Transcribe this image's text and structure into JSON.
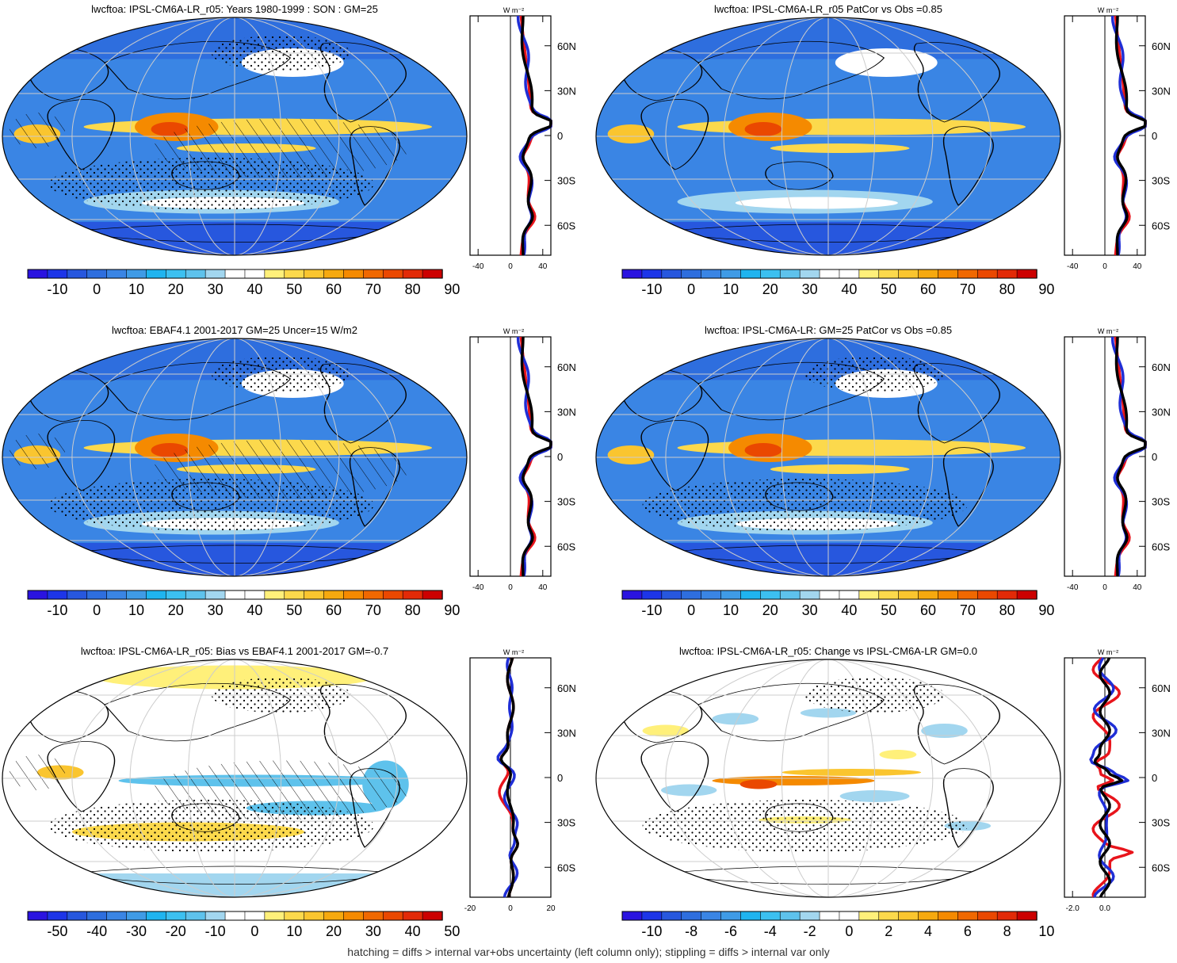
{
  "panels": [
    {
      "title": "lwcftoa: IPSL-CM6A-LR_r05: Years 1980-1999 : SON : GM=25",
      "variant": "mean",
      "hatch": true,
      "stipple": true,
      "colorbar_labels": [
        "-10",
        "0",
        "10",
        "20",
        "30",
        "40",
        "50",
        "60",
        "70",
        "80",
        "90"
      ],
      "profile_unit": "W m⁻²",
      "profile_xticks": [
        "-40",
        "0",
        "40"
      ],
      "profile_xrange": [
        -50,
        50
      ],
      "profile_yticks": [
        "60N",
        "30N",
        "0",
        "30S",
        "60S"
      ]
    },
    {
      "title": "lwcftoa: IPSL-CM6A-LR_r05 PatCor vs Obs =0.85",
      "variant": "mean",
      "hatch": false,
      "stipple": false,
      "colorbar_labels": [
        "-10",
        "0",
        "10",
        "20",
        "30",
        "40",
        "50",
        "60",
        "70",
        "80",
        "90"
      ],
      "profile_unit": "W m⁻²",
      "profile_xticks": [
        "-40",
        "0",
        "40"
      ],
      "profile_xrange": [
        -50,
        50
      ],
      "profile_yticks": [
        "60N",
        "30N",
        "0",
        "30S",
        "60S"
      ]
    },
    {
      "title": "lwcftoa: EBAF4.1 2001-2017 GM=25 Uncer=15 W/m2",
      "variant": "mean",
      "hatch": true,
      "stipple": true,
      "colorbar_labels": [
        "-10",
        "0",
        "10",
        "20",
        "30",
        "40",
        "50",
        "60",
        "70",
        "80",
        "90"
      ],
      "profile_unit": "W m⁻²",
      "profile_xticks": [
        "-40",
        "0",
        "40"
      ],
      "profile_xrange": [
        -50,
        50
      ],
      "profile_yticks": [
        "60N",
        "30N",
        "0",
        "30S",
        "60S"
      ]
    },
    {
      "title": "lwcftoa: IPSL-CM6A-LR: GM=25 PatCor vs Obs =0.85",
      "variant": "mean",
      "hatch": false,
      "stipple": true,
      "colorbar_labels": [
        "-10",
        "0",
        "10",
        "20",
        "30",
        "40",
        "50",
        "60",
        "70",
        "80",
        "90"
      ],
      "profile_unit": "W m⁻²",
      "profile_xticks": [
        "-40",
        "0",
        "40"
      ],
      "profile_xrange": [
        -50,
        50
      ],
      "profile_yticks": [
        "60N",
        "30N",
        "0",
        "30S",
        "60S"
      ]
    },
    {
      "title": "lwcftoa: IPSL-CM6A-LR_r05: Bias vs EBAF4.1 2001-2017  GM=-0.7",
      "variant": "bias",
      "hatch": true,
      "stipple": true,
      "colorbar_labels": [
        "-50",
        "-40",
        "-30",
        "-20",
        "-10",
        "0",
        "10",
        "20",
        "30",
        "40",
        "50"
      ],
      "profile_unit": "W m⁻²",
      "profile_xticks": [
        "-20",
        "0",
        "20"
      ],
      "profile_xrange": [
        -20,
        20
      ],
      "profile_yticks": [
        "60N",
        "30N",
        "0",
        "30S",
        "60S"
      ]
    },
    {
      "title": "lwcftoa: IPSL-CM6A-LR_r05: Change vs IPSL-CM6A-LR GM=0.0",
      "variant": "change",
      "hatch": false,
      "stipple": true,
      "colorbar_labels": [
        "-10",
        "-8",
        "-6",
        "-4",
        "-2",
        "0",
        "2",
        "4",
        "6",
        "8",
        "10"
      ],
      "profile_unit": "W m⁻²",
      "profile_xticks": [
        "-2.0",
        "0.0"
      ],
      "profile_xrange": [
        -2.5,
        2.5
      ],
      "profile_yticks": [
        "60N",
        "30N",
        "0",
        "30S",
        "60S"
      ]
    }
  ],
  "colors": {
    "palette": [
      "#2a13e0",
      "#1d35e8",
      "#2757de",
      "#2e6ede",
      "#3a85e4",
      "#3f9be6",
      "#1fb4ef",
      "#3cc0f0",
      "#5ec2ec",
      "#a2d6ef",
      "#ffffff",
      "#ffffff",
      "#fff07a",
      "#fcd94c",
      "#fac52f",
      "#f6a90f",
      "#f58a00",
      "#f06800",
      "#ea4800",
      "#e22a07",
      "#cc0000"
    ],
    "profile_red": "#e8141b",
    "profile_blue": "#1f2ed6",
    "profile_black": "#000000"
  },
  "footer": "hatching = diffs > internal var+obs uncertainty (left column only); stippling = diffs > internal var only"
}
